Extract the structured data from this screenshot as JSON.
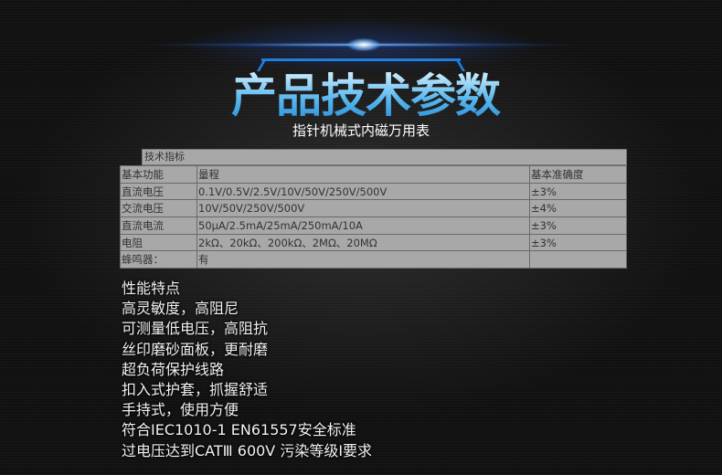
{
  "header": {
    "title": "产品技术参数",
    "subtitle": "指针机械式内磁万用表"
  },
  "spec": {
    "caption": "技术指标",
    "columns": [
      "基本功能",
      "量程",
      "基本准确度"
    ],
    "rows": [
      [
        "直流电压",
        "0.1V/0.5V/2.5V/10V/50V/250V/500V",
        "±3%"
      ],
      [
        "交流电压",
        "10V/50V/250V/500V",
        "±4%"
      ],
      [
        "直流电流",
        "50μA/2.5mA/25mA/250mA/10A",
        "±3%"
      ],
      [
        "电阻",
        "2kΩ、20kΩ、200kΩ、2MΩ、20MΩ",
        "±3%"
      ],
      [
        "蜂鸣器：",
        "有",
        ""
      ]
    ]
  },
  "features": [
    "性能特点",
    "高灵敏度，高阻尼",
    "可测量低电压，高阻抗",
    "丝印磨砂面板，更耐磨",
    "超负荷保护线路",
    "扣入式护套，抓握舒适",
    "手持式，使用方便",
    "符合IEC1010-1  EN61557安全标准",
    "过电压达到CATⅢ 600V 污染等级Ⅰ要求"
  ],
  "colors": {
    "accent": "#1e7fe0",
    "title": "#6cc6f5",
    "table_bg": "#a8a8a8"
  }
}
